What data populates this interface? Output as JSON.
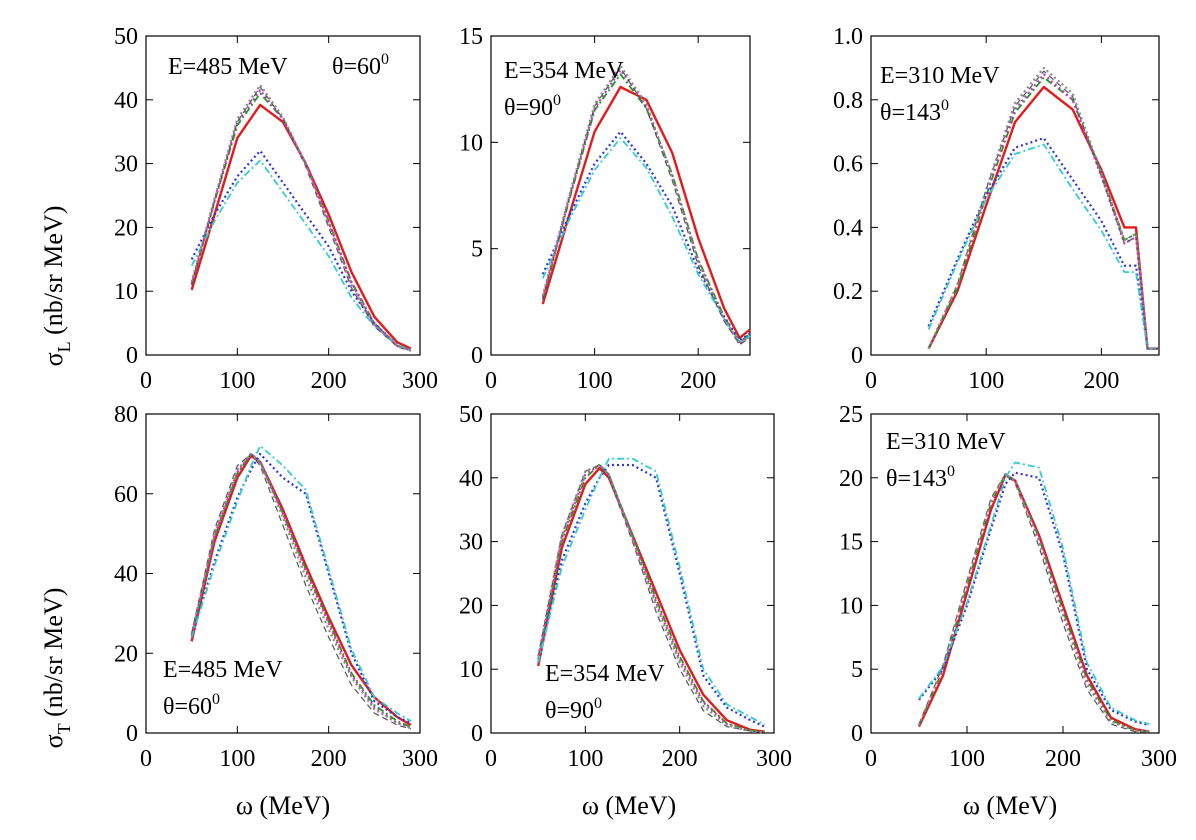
{
  "figure": {
    "ylabel_top": {
      "main": "σ",
      "sub": "L",
      "unit": " (nb/sr MeV)"
    },
    "ylabel_bottom": {
      "main": "σ",
      "sub": "T",
      "unit": " (nb/sr MeV)"
    },
    "xlabel": "ω (MeV)"
  },
  "colors": {
    "series_a": "#e41a1c",
    "series_b": "#1a9c1a",
    "series_c": "#cc33cc",
    "series_d": "#3333dd",
    "series_e": "#33cccc",
    "series_f": "#555555",
    "series_g": "#888888"
  },
  "chart_data": [
    {
      "type": "line",
      "panel": "longitudinal",
      "annotation": [
        "E=485 MeV",
        "θ=60",
        "0"
      ],
      "xlabel": "",
      "ylabel": "σL (nb/sr MeV)",
      "xlim": [
        0,
        300
      ],
      "ylim": [
        0,
        50
      ],
      "xticks": [
        "0",
        "100",
        "200",
        "300"
      ],
      "yticks": [
        "0",
        "10",
        "20",
        "30",
        "40",
        "50"
      ],
      "x": [
        50,
        75,
        100,
        125,
        150,
        175,
        200,
        225,
        250,
        275,
        290
      ],
      "series": [
        {
          "name": "red",
          "style": "solid",
          "values": [
            10.2,
            22,
            34,
            39.2,
            36.5,
            30,
            22,
            13,
            6,
            2,
            1
          ]
        },
        {
          "name": "green",
          "style": "dashdot",
          "values": [
            11,
            24,
            36,
            41,
            37,
            30,
            21,
            11.5,
            5,
            1.5,
            0.8
          ]
        },
        {
          "name": "magenta",
          "style": "dotted",
          "values": [
            11.2,
            24.2,
            36.5,
            41.5,
            37,
            30,
            20.8,
            11.3,
            4.8,
            1.4,
            0.7
          ]
        },
        {
          "name": "blue",
          "style": "dotted",
          "values": [
            15,
            22,
            28,
            32,
            27,
            22,
            17,
            10,
            5,
            1.5,
            0.8
          ]
        },
        {
          "name": "cyan",
          "style": "dashdot",
          "values": [
            14,
            21,
            27,
            30.5,
            25.5,
            20.5,
            15.5,
            9,
            4.5,
            1.5,
            0.8
          ]
        },
        {
          "name": "black",
          "style": "dashed",
          "values": [
            11,
            24,
            36.5,
            42,
            37,
            29.5,
            20,
            10.5,
            4.5,
            1.3,
            0.6
          ]
        },
        {
          "name": "gray",
          "style": "dotted",
          "values": [
            11.5,
            24.5,
            37,
            42.3,
            37.3,
            29.8,
            20.5,
            11,
            4.7,
            1.4,
            0.7
          ]
        }
      ]
    },
    {
      "type": "line",
      "panel": "longitudinal",
      "annotation": [
        "E=354 MeV",
        "θ=90",
        "0"
      ],
      "xlabel": "",
      "ylabel": "",
      "xlim": [
        0,
        250
      ],
      "ylim": [
        0,
        15
      ],
      "xticks": [
        "0",
        "100",
        "200"
      ],
      "yticks": [
        "0",
        "5",
        "10",
        "15"
      ],
      "x": [
        50,
        75,
        100,
        125,
        150,
        175,
        200,
        225,
        240,
        250
      ],
      "series": [
        {
          "name": "red",
          "style": "solid",
          "values": [
            2.4,
            6.5,
            10.5,
            12.6,
            12,
            9.5,
            5.5,
            2.2,
            0.8,
            1.2
          ]
        },
        {
          "name": "green",
          "style": "dashdot",
          "values": [
            2.6,
            7.2,
            11.5,
            13.2,
            11.6,
            8.5,
            4.5,
            1.8,
            0.6,
            1.0
          ]
        },
        {
          "name": "magenta",
          "style": "dotted",
          "values": [
            2.7,
            7.3,
            11.6,
            13.4,
            11.7,
            8.4,
            4.4,
            1.7,
            0.5,
            0.9
          ]
        },
        {
          "name": "blue",
          "style": "dotted",
          "values": [
            3.8,
            6.5,
            9,
            10.5,
            9,
            7,
            4,
            1.8,
            0.7,
            1.0
          ]
        },
        {
          "name": "cyan",
          "style": "dashdot",
          "values": [
            3.6,
            6.3,
            8.7,
            10.2,
            8.8,
            6.5,
            3.8,
            1.7,
            0.6,
            0.9
          ]
        },
        {
          "name": "black",
          "style": "dashed",
          "values": [
            2.6,
            7.3,
            11.7,
            13.5,
            11.6,
            8.2,
            4.2,
            1.6,
            0.5,
            0.8
          ]
        },
        {
          "name": "gray",
          "style": "dotted",
          "values": [
            2.8,
            7.4,
            11.8,
            13.6,
            11.8,
            8.4,
            4.4,
            1.7,
            0.6,
            0.9
          ]
        }
      ]
    },
    {
      "type": "line",
      "panel": "longitudinal",
      "annotation": [
        "E=310 MeV",
        "θ=143",
        "0"
      ],
      "xlabel": "",
      "ylabel": "",
      "xlim": [
        0,
        250
      ],
      "ylim": [
        0,
        1.0
      ],
      "xticks": [
        "0",
        "100",
        "200"
      ],
      "yticks": [
        "0",
        "0.2",
        "0.4",
        "0.6",
        "0.8",
        "1.0"
      ],
      "x": [
        50,
        75,
        100,
        125,
        150,
        175,
        200,
        220,
        230,
        240,
        250
      ],
      "series": [
        {
          "name": "red",
          "style": "solid",
          "values": [
            0.02,
            0.2,
            0.47,
            0.73,
            0.84,
            0.77,
            0.58,
            0.4,
            0.4,
            0.02,
            0.02
          ]
        },
        {
          "name": "green",
          "style": "dashdot",
          "values": [
            0.02,
            0.21,
            0.5,
            0.76,
            0.87,
            0.8,
            0.57,
            0.36,
            0.38,
            0.02,
            0.02
          ]
        },
        {
          "name": "magenta",
          "style": "dotted",
          "values": [
            0.02,
            0.22,
            0.51,
            0.77,
            0.88,
            0.8,
            0.56,
            0.35,
            0.37,
            0.02,
            0.02
          ]
        },
        {
          "name": "blue",
          "style": "dotted",
          "values": [
            0.09,
            0.3,
            0.5,
            0.65,
            0.68,
            0.55,
            0.42,
            0.28,
            0.28,
            0.02,
            0.02
          ]
        },
        {
          "name": "cyan",
          "style": "dashdot",
          "values": [
            0.08,
            0.29,
            0.49,
            0.63,
            0.66,
            0.52,
            0.39,
            0.26,
            0.26,
            0.02,
            0.02
          ]
        },
        {
          "name": "black",
          "style": "dashed",
          "values": [
            0.02,
            0.22,
            0.52,
            0.78,
            0.89,
            0.81,
            0.56,
            0.35,
            0.37,
            0.02,
            0.02
          ]
        },
        {
          "name": "gray",
          "style": "dotted",
          "values": [
            0.02,
            0.22,
            0.52,
            0.79,
            0.9,
            0.82,
            0.57,
            0.36,
            0.38,
            0.02,
            0.02
          ]
        }
      ]
    },
    {
      "type": "line",
      "panel": "transverse",
      "annotation": [
        "E=485 MeV",
        "θ=60",
        "0"
      ],
      "xlabel": "ω (MeV)",
      "ylabel": "σT (nb/sr MeV)",
      "xlim": [
        0,
        300
      ],
      "ylim": [
        0,
        80
      ],
      "xticks": [
        "0",
        "100",
        "200",
        "300"
      ],
      "yticks": [
        "0",
        "20",
        "40",
        "60",
        "80"
      ],
      "x": [
        50,
        75,
        100,
        115,
        125,
        150,
        175,
        200,
        225,
        250,
        275,
        290
      ],
      "series": [
        {
          "name": "red",
          "style": "solid",
          "values": [
            23,
            48,
            64,
            69.5,
            68,
            56,
            42,
            29,
            17,
            9,
            4,
            2
          ]
        },
        {
          "name": "green",
          "style": "dashdot",
          "values": [
            24,
            49,
            65,
            70,
            68,
            55,
            41,
            28,
            15,
            7,
            3,
            1.5
          ]
        },
        {
          "name": "magenta",
          "style": "dotted",
          "values": [
            24.5,
            49.5,
            65.5,
            70,
            68,
            55,
            40.5,
            27.5,
            14.5,
            6.5,
            2.5,
            1.2
          ]
        },
        {
          "name": "blue",
          "style": "dotted",
          "values": [
            24,
            43,
            59,
            66,
            70,
            64,
            60,
            40,
            20,
            8,
            4,
            2.5
          ]
        },
        {
          "name": "cyan",
          "style": "dashdot",
          "values": [
            24,
            42,
            58,
            67,
            72,
            67,
            61,
            41,
            21,
            9,
            5,
            3
          ]
        },
        {
          "name": "black",
          "style": "dashed",
          "values": [
            25,
            51,
            67,
            70,
            67,
            52,
            37,
            24,
            12,
            5,
            2,
            1
          ]
        },
        {
          "name": "gray",
          "style": "dotted",
          "values": [
            25,
            50,
            66,
            70,
            68,
            54,
            39,
            26,
            14,
            6,
            2.5,
            1.2
          ]
        }
      ]
    },
    {
      "type": "line",
      "panel": "transverse",
      "annotation": [
        "E=354 MeV",
        "θ=90",
        "0"
      ],
      "xlabel": "ω (MeV)",
      "ylabel": "",
      "xlim": [
        0,
        300
      ],
      "ylim": [
        0,
        50
      ],
      "xticks": [
        "0",
        "100",
        "200",
        "300"
      ],
      "yticks": [
        "0",
        "10",
        "20",
        "30",
        "40",
        "50"
      ],
      "x": [
        50,
        75,
        100,
        115,
        125,
        150,
        175,
        200,
        225,
        250,
        275,
        290
      ],
      "series": [
        {
          "name": "red",
          "style": "solid",
          "values": [
            10.5,
            29,
            39,
            41.5,
            40,
            31,
            22,
            13,
            6,
            2,
            0.5,
            0.2
          ]
        },
        {
          "name": "green",
          "style": "dashdot",
          "values": [
            11,
            30,
            40,
            42,
            40.5,
            31,
            21,
            12,
            5,
            1.5,
            0.4,
            0.2
          ]
        },
        {
          "name": "magenta",
          "style": "dotted",
          "values": [
            11.5,
            30.5,
            40.5,
            42,
            40.5,
            30.5,
            20.5,
            11.5,
            4.8,
            1.4,
            0.3,
            0.1
          ]
        },
        {
          "name": "blue",
          "style": "dotted",
          "values": [
            11,
            27,
            36,
            40,
            42,
            42,
            40,
            25,
            9,
            4,
            2,
            1
          ]
        },
        {
          "name": "cyan",
          "style": "dashdot",
          "values": [
            11,
            26,
            35,
            40,
            43,
            43,
            41,
            26,
            10,
            4.5,
            2.5,
            1.3
          ]
        },
        {
          "name": "black",
          "style": "dashed",
          "values": [
            12,
            31,
            41,
            42,
            40,
            30,
            19,
            10,
            3.5,
            1,
            0.3,
            0.1
          ]
        },
        {
          "name": "gray",
          "style": "dotted",
          "values": [
            12,
            31,
            41,
            42,
            40.5,
            30.5,
            20,
            11,
            4.2,
            1.2,
            0.3,
            0.1
          ]
        }
      ]
    },
    {
      "type": "line",
      "panel": "transverse",
      "annotation": [
        "E=310 MeV",
        "θ=143",
        "0"
      ],
      "xlabel": "ω (MeV)",
      "ylabel": "",
      "xlim": [
        0,
        300
      ],
      "ylim": [
        0,
        25
      ],
      "xticks": [
        "0",
        "100",
        "200",
        "300"
      ],
      "yticks": [
        "0",
        "5",
        "10",
        "15",
        "20",
        "25"
      ],
      "x": [
        50,
        75,
        100,
        125,
        140,
        150,
        175,
        200,
        225,
        250,
        275,
        290
      ],
      "series": [
        {
          "name": "red",
          "style": "solid",
          "values": [
            0.5,
            4.5,
            11,
            17.5,
            20.2,
            19.8,
            15.5,
            10,
            4.5,
            1.2,
            0.3,
            0.1
          ]
        },
        {
          "name": "green",
          "style": "dashdot",
          "values": [
            0.6,
            5,
            11.5,
            18,
            20.3,
            19.8,
            15.3,
            9.6,
            4.2,
            1,
            0.2,
            0.1
          ]
        },
        {
          "name": "magenta",
          "style": "dotted",
          "values": [
            0.6,
            5.1,
            11.6,
            18.1,
            20.3,
            19.8,
            15.2,
            9.4,
            4,
            0.9,
            0.2,
            0.1
          ]
        },
        {
          "name": "blue",
          "style": "dotted",
          "values": [
            2.6,
            5,
            10,
            16,
            19.5,
            20.4,
            20,
            14,
            5,
            1.8,
            0.9,
            0.6
          ]
        },
        {
          "name": "cyan",
          "style": "dashdot",
          "values": [
            2.7,
            5.2,
            10.2,
            16.3,
            20,
            21.2,
            20.8,
            14.5,
            5.5,
            2,
            1,
            0.7
          ]
        },
        {
          "name": "black",
          "style": "dashed",
          "values": [
            0.7,
            5.3,
            12,
            18.4,
            20.3,
            19.6,
            14.6,
            8.6,
            3.4,
            0.7,
            0.1,
            0.05
          ]
        },
        {
          "name": "gray",
          "style": "dotted",
          "values": [
            0.6,
            5.2,
            11.8,
            18.2,
            20.3,
            19.7,
            15,
            9.2,
            3.8,
            0.9,
            0.2,
            0.1
          ]
        }
      ]
    }
  ]
}
